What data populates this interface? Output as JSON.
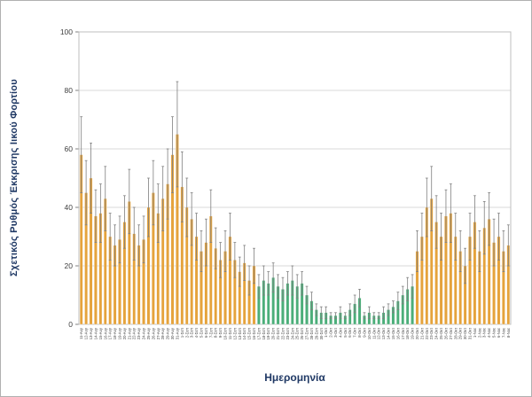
{
  "frame": {
    "background": "#ffffff",
    "border_color": "#b0b0b0"
  },
  "chart_data": {
    "type": "bar",
    "title": "",
    "xlabel": "Ημερομηνία",
    "ylabel": "Σχετικός Ρυθμός Έκκρισης Ιικού Φορτίου",
    "ylim": [
      0,
      100
    ],
    "ytick_step": 20,
    "ytick_labels": [
      "0",
      "20",
      "40",
      "60",
      "80",
      "100"
    ],
    "grid": true,
    "legend_position": "none",
    "highlight_range": [
      37,
      69
    ],
    "colors": {
      "bar_default": "#e5a33c",
      "bar_highlight": "#4bae79",
      "error_bar": "#7f7f7f",
      "gridline": "#d9d9d9",
      "axis_line": "#808080",
      "plot_border": "#bfbfbf",
      "tick_text": "#404040",
      "axis_title_text": "#1f3864"
    },
    "categories": [
      "11-Αυγ",
      "12-Αυγ",
      "13-Αυγ",
      "14-Αυγ",
      "15-Αυγ",
      "16-Αυγ",
      "17-Αυγ",
      "18-Αυγ",
      "19-Αυγ",
      "20-Αυγ",
      "21-Αυγ",
      "22-Αυγ",
      "23-Αυγ",
      "24-Αυγ",
      "25-Αυγ",
      "26-Αυγ",
      "27-Αυγ",
      "28-Αυγ",
      "29-Αυγ",
      "30-Αυγ",
      "31-Αυγ",
      "1-Σεπ",
      "2-Σεπ",
      "3-Σεπ",
      "4-Σεπ",
      "5-Σεπ",
      "6-Σεπ",
      "7-Σεπ",
      "8-Σεπ",
      "9-Σεπ",
      "10-Σεπ",
      "11-Σεπ",
      "12-Σεπ",
      "13-Σεπ",
      "14-Σεπ",
      "15-Σεπ",
      "16-Σεπ",
      "17-Σεπ",
      "18-Σεπ",
      "19-Σεπ",
      "20-Σεπ",
      "21-Σεπ",
      "22-Σεπ",
      "23-Σεπ",
      "24-Σεπ",
      "25-Σεπ",
      "26-Σεπ",
      "27-Σεπ",
      "28-Σεπ",
      "29-Σεπ",
      "30-Σεπ",
      "1-Οκτ",
      "2-Οκτ",
      "3-Οκτ",
      "4-Οκτ",
      "5-Οκτ",
      "6-Οκτ",
      "7-Οκτ",
      "8-Οκτ",
      "9-Οκτ",
      "10-Οκτ",
      "11-Οκτ",
      "12-Οκτ",
      "13-Οκτ",
      "14-Οκτ",
      "15-Οκτ",
      "16-Οκτ",
      "17-Οκτ",
      "18-Οκτ",
      "19-Οκτ",
      "20-Οκτ",
      "21-Οκτ",
      "22-Οκτ",
      "23-Οκτ",
      "24-Οκτ",
      "25-Οκτ",
      "26-Οκτ",
      "27-Οκτ",
      "28-Οκτ",
      "29-Οκτ",
      "30-Οκτ",
      "31-Οκτ",
      "1-Νοε",
      "2-Νοε",
      "3-Νοε",
      "4-Νοε",
      "5-Νοε",
      "6-Νοε",
      "7-Νοε",
      "8-Νοε"
    ],
    "values": [
      58,
      45,
      50,
      37,
      38,
      43,
      30,
      27,
      29,
      35,
      42,
      31,
      27,
      29,
      40,
      45,
      38,
      43,
      48,
      58,
      65,
      47,
      40,
      36,
      30,
      25,
      28,
      37,
      26,
      22,
      25,
      30,
      22,
      18,
      21,
      15,
      20,
      13,
      15,
      14,
      16,
      13,
      12,
      14,
      15,
      13,
      14,
      10,
      8,
      5,
      4,
      4,
      3,
      3,
      4,
      3,
      5,
      7,
      9,
      3,
      4,
      3,
      3,
      4,
      5,
      6,
      8,
      10,
      12,
      13,
      25,
      30,
      40,
      43,
      35,
      30,
      37,
      38,
      30,
      25,
      20,
      30,
      35,
      25,
      33,
      36,
      28,
      30,
      25,
      27
    ],
    "errors": [
      13,
      11,
      12,
      9,
      10,
      11,
      8,
      7,
      8,
      9,
      11,
      9,
      7,
      8,
      10,
      11,
      10,
      11,
      12,
      13,
      18,
      12,
      10,
      9,
      8,
      7,
      8,
      9,
      7,
      6,
      7,
      8,
      6,
      5,
      6,
      5,
      6,
      4,
      5,
      4,
      5,
      4,
      4,
      4,
      5,
      4,
      4,
      3,
      3,
      2,
      2,
      2,
      1,
      1,
      2,
      1,
      2,
      3,
      3,
      1,
      2,
      1,
      1,
      2,
      2,
      2,
      3,
      3,
      4,
      4,
      7,
      8,
      10,
      11,
      9,
      8,
      9,
      10,
      8,
      7,
      6,
      8,
      9,
      7,
      9,
      9,
      8,
      8,
      7,
      7
    ]
  }
}
